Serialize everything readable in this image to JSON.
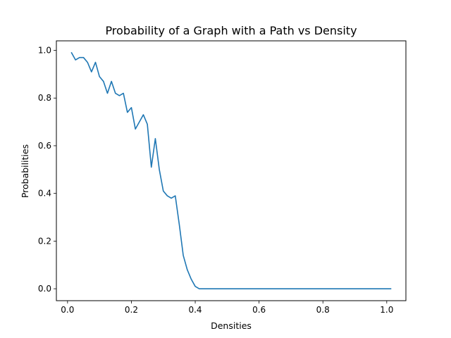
{
  "chart_data": {
    "type": "line",
    "title": "Probability of a Graph with a Path vs Density",
    "xlabel": "Densities",
    "ylabel": "Probabilities",
    "xlim": [
      -0.035,
      1.06
    ],
    "ylim": [
      -0.05,
      1.04
    ],
    "xticks": [
      0.0,
      0.2,
      0.4,
      0.6,
      0.8,
      1.0
    ],
    "xtick_labels": [
      "0.0",
      "0.2",
      "0.4",
      "0.6",
      "0.8",
      "1.0"
    ],
    "yticks": [
      0.0,
      0.2,
      0.4,
      0.6,
      0.8,
      1.0
    ],
    "ytick_labels": [
      "0.0",
      "0.2",
      "0.4",
      "0.6",
      "0.8",
      "1.0"
    ],
    "grid": false,
    "legend": false,
    "series": [
      {
        "color": "#1f77b4",
        "x": [
          0.0125,
          0.025,
          0.0375,
          0.05,
          0.0625,
          0.075,
          0.0875,
          0.1,
          0.1125,
          0.125,
          0.1375,
          0.15,
          0.1625,
          0.175,
          0.1875,
          0.2,
          0.2125,
          0.225,
          0.2375,
          0.25,
          0.2625,
          0.275,
          0.2875,
          0.3,
          0.3125,
          0.325,
          0.3375,
          0.35,
          0.3625,
          0.375,
          0.3875,
          0.4,
          0.4125,
          0.425,
          0.4375,
          0.45,
          0.4625,
          0.475,
          0.4875,
          0.5,
          0.5125,
          0.525,
          0.5375,
          0.55,
          0.5625,
          0.575,
          0.5875,
          0.6,
          0.6125,
          0.625,
          0.6375,
          0.65,
          0.6625,
          0.675,
          0.6875,
          0.7,
          0.7125,
          0.725,
          0.7375,
          0.75,
          0.7625,
          0.775,
          0.7875,
          0.8,
          0.8125,
          0.825,
          0.8375,
          0.85,
          0.8625,
          0.875,
          0.8875,
          0.9,
          0.9125,
          0.925,
          0.9375,
          0.95,
          0.9625,
          0.975,
          0.9875,
          1.0,
          1.0125
        ],
        "y": [
          0.99,
          0.96,
          0.97,
          0.97,
          0.95,
          0.91,
          0.95,
          0.89,
          0.87,
          0.82,
          0.87,
          0.82,
          0.81,
          0.82,
          0.74,
          0.76,
          0.67,
          0.7,
          0.73,
          0.69,
          0.51,
          0.63,
          0.5,
          0.41,
          0.39,
          0.38,
          0.39,
          0.27,
          0.14,
          0.08,
          0.04,
          0.01,
          0.0,
          0.0,
          0.0,
          0.0,
          0.0,
          0.0,
          0.0,
          0.0,
          0.0,
          0.0,
          0.0,
          0.0,
          0.0,
          0.0,
          0.0,
          0.0,
          0.0,
          0.0,
          0.0,
          0.0,
          0.0,
          0.0,
          0.0,
          0.0,
          0.0,
          0.0,
          0.0,
          0.0,
          0.0,
          0.0,
          0.0,
          0.0,
          0.0,
          0.0,
          0.0,
          0.0,
          0.0,
          0.0,
          0.0,
          0.0,
          0.0,
          0.0,
          0.0,
          0.0,
          0.0,
          0.0,
          0.0,
          0.0,
          0.0
        ]
      }
    ]
  }
}
